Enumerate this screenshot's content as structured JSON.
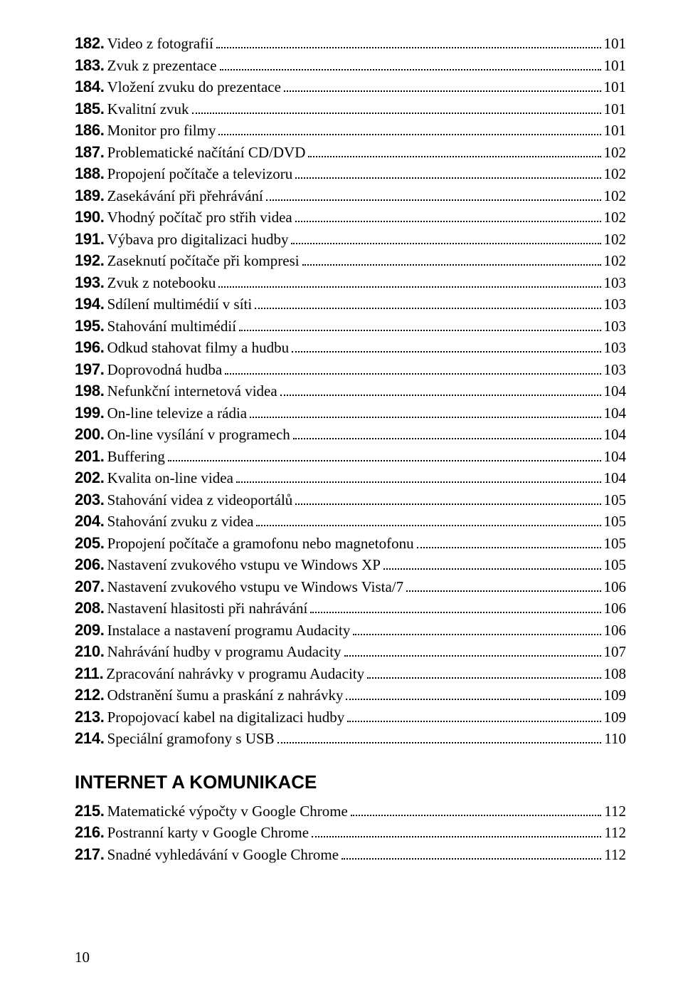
{
  "colors": {
    "background": "#ffffff",
    "text": "#000000",
    "leader": "#000000"
  },
  "typography": {
    "number_font": "Arial",
    "number_weight": 900,
    "number_size_pt": 16,
    "title_font": "Georgia",
    "title_size_pt": 16,
    "heading_size_pt": 20,
    "heading_weight": 900
  },
  "toc": {
    "section1": {
      "heading": null,
      "items": [
        {
          "num": "182.",
          "title": "Video z fotografií",
          "page": "101"
        },
        {
          "num": "183.",
          "title": "Zvuk z prezentace",
          "page": "101"
        },
        {
          "num": "184.",
          "title": "Vložení zvuku do prezentace",
          "page": "101"
        },
        {
          "num": "185.",
          "title": "Kvalitní zvuk",
          "page": "101"
        },
        {
          "num": "186.",
          "title": "Monitor pro filmy",
          "page": "101"
        },
        {
          "num": "187.",
          "title": "Problematické načítání CD/DVD",
          "page": "102"
        },
        {
          "num": "188.",
          "title": "Propojení počítače a televizoru",
          "page": "102"
        },
        {
          "num": "189.",
          "title": "Zasekávání při přehrávání",
          "page": "102"
        },
        {
          "num": "190.",
          "title": "Vhodný počítač pro střih videa",
          "page": "102"
        },
        {
          "num": "191.",
          "title": "Výbava pro digitalizaci hudby",
          "page": "102"
        },
        {
          "num": "192.",
          "title": "Zaseknutí počítače při kompresi",
          "page": "102"
        },
        {
          "num": "193.",
          "title": "Zvuk z notebooku",
          "page": "103"
        },
        {
          "num": "194.",
          "title": "Sdílení multimédií v síti",
          "page": "103"
        },
        {
          "num": "195.",
          "title": "Stahování multimédií",
          "page": "103"
        },
        {
          "num": "196.",
          "title": "Odkud stahovat filmy a hudbu",
          "page": "103"
        },
        {
          "num": "197.",
          "title": "Doprovodná hudba",
          "page": "103"
        },
        {
          "num": "198.",
          "title": "Nefunkční internetová videa",
          "page": "104"
        },
        {
          "num": "199.",
          "title": "On-line televize a rádia",
          "page": "104"
        },
        {
          "num": "200.",
          "title": "On-line vysílání v programech",
          "page": "104"
        },
        {
          "num": "201.",
          "title": "Buffering",
          "page": "104"
        },
        {
          "num": "202.",
          "title": "Kvalita on-line videa",
          "page": "104"
        },
        {
          "num": "203.",
          "title": "Stahování videa z videoportálů",
          "page": "105"
        },
        {
          "num": "204.",
          "title": "Stahování zvuku z videa",
          "page": "105"
        },
        {
          "num": "205.",
          "title": "Propojení počítače a gramofonu nebo magnetofonu",
          "page": "105"
        },
        {
          "num": "206.",
          "title": "Nastavení zvukového vstupu ve Windows XP",
          "page": "105"
        },
        {
          "num": "207.",
          "title": "Nastavení zvukového vstupu ve Windows Vista/7",
          "page": "106"
        },
        {
          "num": "208.",
          "title": "Nastavení hlasitosti při nahrávání",
          "page": "106"
        },
        {
          "num": "209.",
          "title": "Instalace a nastavení programu Audacity",
          "page": "106"
        },
        {
          "num": "210.",
          "title": "Nahrávání hudby v programu Audacity",
          "page": "107"
        },
        {
          "num": "211.",
          "title": "Zpracování nahrávky v programu Audacity",
          "page": "108"
        },
        {
          "num": "212.",
          "title": "Odstranění šumu a praskání z nahrávky",
          "page": "109"
        },
        {
          "num": "213.",
          "title": "Propojovací kabel na digitalizaci hudby",
          "page": "109"
        },
        {
          "num": "214.",
          "title": "Speciální gramofony s USB",
          "page": "110"
        }
      ]
    },
    "section2": {
      "heading": "INTERNET A KOMUNIKACE",
      "items": [
        {
          "num": "215.",
          "title": "Matematické výpočty v Google Chrome",
          "page": "112"
        },
        {
          "num": "216.",
          "title": "Postranní karty v Google Chrome",
          "page": "112"
        },
        {
          "num": "217.",
          "title": "Snadné vyhledávání v Google Chrome",
          "page": "112"
        }
      ]
    }
  },
  "page_number": "10"
}
